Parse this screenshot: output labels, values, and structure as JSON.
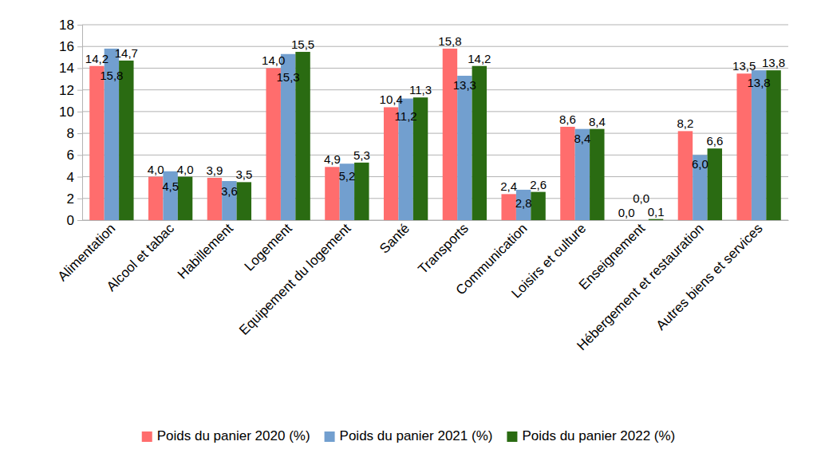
{
  "chart_data": {
    "type": "bar",
    "categories": [
      "Alimentation",
      "Alcool et tabac",
      "Habillement",
      "Logement",
      "Equipement du logement",
      "Santé",
      "Transports",
      "Communication",
      "Loisirs et culture",
      "Enseignement",
      "Hébergement et restauration",
      "Autres biens et services"
    ],
    "series": [
      {
        "name": "Poids du panier 2020 (%)",
        "color": "#ff6d6d",
        "values": [
          14.2,
          4.0,
          3.9,
          14.0,
          4.9,
          10.4,
          15.8,
          2.4,
          8.6,
          0.0,
          8.2,
          13.5
        ],
        "value_labels": [
          "14,2",
          "4,0",
          "3,9",
          "14,0",
          "4,9",
          "10,4",
          "15,8",
          "2,4",
          "8,6",
          "0,0",
          "8,2",
          "13,5"
        ]
      },
      {
        "name": "Poids du panier 2021 (%)",
        "color": "#729fcf",
        "values": [
          15.8,
          4.5,
          3.6,
          15.3,
          5.2,
          11.2,
          13.3,
          2.8,
          8.4,
          0.0,
          6.0,
          13.8
        ],
        "value_labels": [
          "15,8",
          "4,5",
          "3,6",
          "15,3",
          "5,2",
          "11,2",
          "13,3",
          "2,8",
          "8,4",
          "0,0",
          "6,0",
          "13,8"
        ]
      },
      {
        "name": "Poids du panier 2022 (%)",
        "color": "#2a6b12",
        "values": [
          14.7,
          4.0,
          3.5,
          15.5,
          5.3,
          11.3,
          14.2,
          2.6,
          8.4,
          0.1,
          6.6,
          13.8
        ],
        "value_labels": [
          "14,7",
          "4,0",
          "3,5",
          "15,5",
          "5,3",
          "11,3",
          "14,2",
          "2,6",
          "8,4",
          "0,1",
          "6,6",
          "13,8"
        ]
      }
    ],
    "ylim": [
      0,
      18
    ],
    "yticks": [
      0,
      2,
      4,
      6,
      8,
      10,
      12,
      14,
      16,
      18
    ],
    "grid": true,
    "legend": "bottom",
    "data_labels": true
  }
}
